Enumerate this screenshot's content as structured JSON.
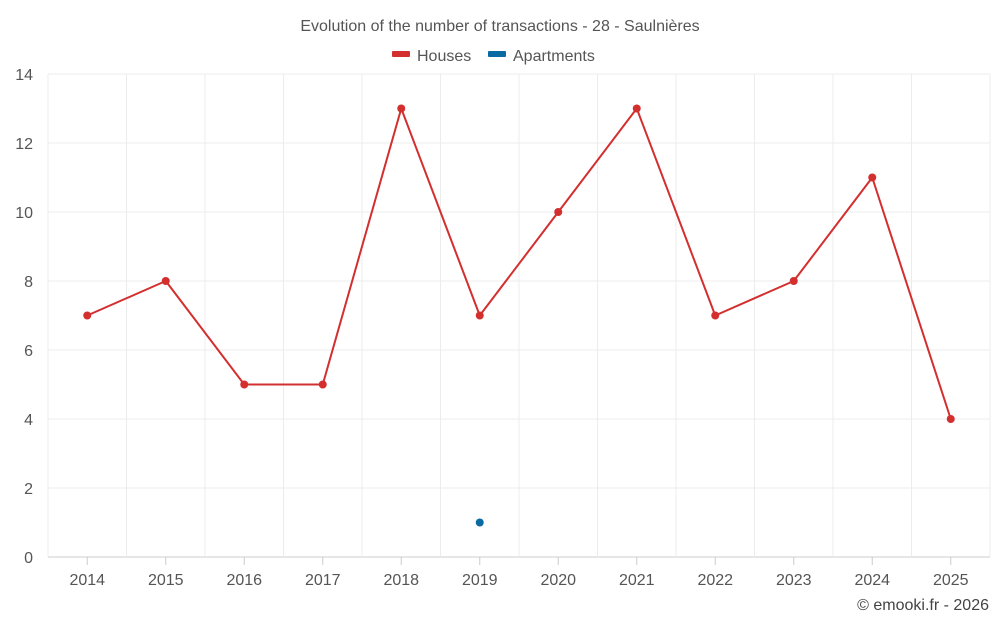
{
  "chart_data": {
    "type": "line",
    "title": "Evolution of the number of transactions - 28 - Saulnières",
    "categories": [
      "2014",
      "2015",
      "2016",
      "2017",
      "2018",
      "2019",
      "2020",
      "2021",
      "2022",
      "2023",
      "2024",
      "2025"
    ],
    "series": [
      {
        "name": "Houses",
        "color": "#d32f2f",
        "values": [
          7,
          8,
          5,
          5,
          13,
          7,
          10,
          13,
          7,
          8,
          11,
          4
        ]
      },
      {
        "name": "Apartments",
        "color": "#0a6aa1",
        "values": [
          null,
          null,
          null,
          null,
          null,
          1,
          null,
          null,
          null,
          null,
          null,
          null
        ]
      }
    ],
    "ylim": [
      0,
      14
    ],
    "yticks": [
      "0",
      "2",
      "4",
      "6",
      "8",
      "10",
      "12",
      "14"
    ],
    "xlabel": "",
    "ylabel": "",
    "grid": true,
    "legend_position": "top-center"
  },
  "credit": "© emooki.fr - 2026"
}
